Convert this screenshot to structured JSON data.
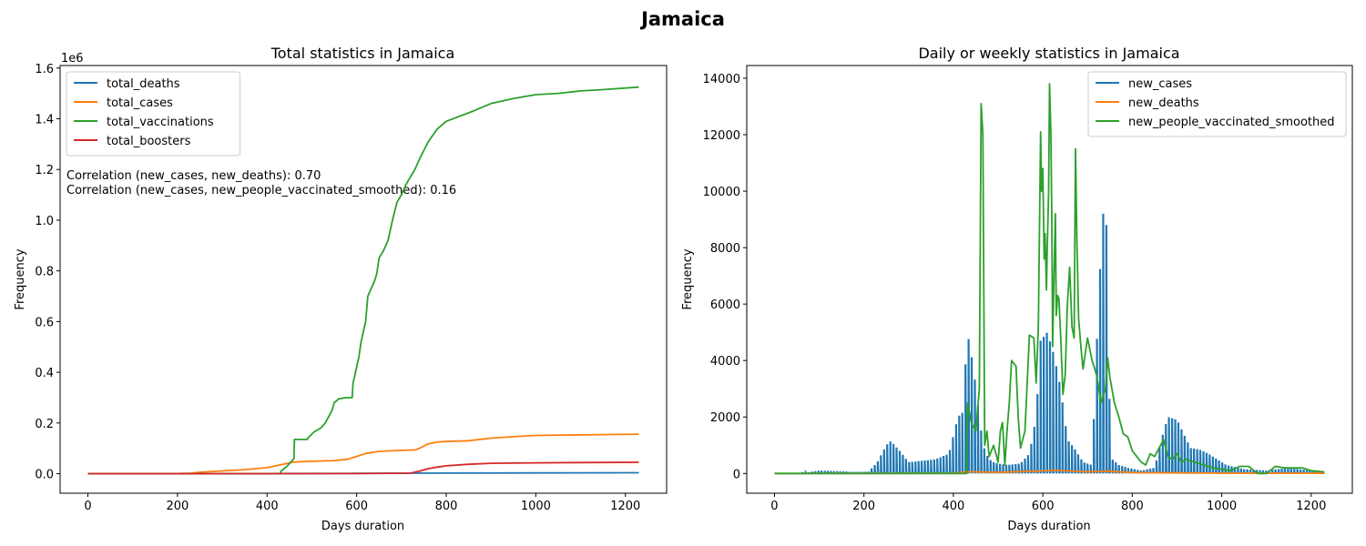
{
  "figure": {
    "suptitle": "Jamaica"
  },
  "chart_data": [
    {
      "type": "line",
      "title": "Total statistics in Jamaica",
      "xlabel": "Days duration",
      "ylabel": "Frequency",
      "offset_text": "1e6",
      "xlim": [
        -62,
        1292
      ],
      "ylim": [
        -0.077,
        1.61
      ],
      "xticks": [
        0,
        200,
        400,
        600,
        800,
        1000,
        1200
      ],
      "yticks": [
        0.0,
        0.2,
        0.4,
        0.6,
        0.8,
        1.0,
        1.2,
        1.4,
        1.6
      ],
      "ytick_labels": [
        "0.0",
        "0.2",
        "0.4",
        "0.6",
        "0.8",
        "1.0",
        "1.2",
        "1.4",
        "1.6"
      ],
      "legend_position": "top-left",
      "annotations": [
        "Correlation (new_cases, new_deaths): 0.70",
        "Correlation (new_cases, new_people_vaccinated_smoothed): 0.16"
      ],
      "series": [
        {
          "name": "total_deaths",
          "color": "#1f77b4",
          "style": "line",
          "x": [
            0,
            100,
            200,
            300,
            400,
            500,
            600,
            700,
            800,
            1000,
            1230
          ],
          "y": [
            0,
            0,
            0.0001,
            0.0002,
            0.0004,
            0.0008,
            0.0012,
            0.0018,
            0.0025,
            0.0032,
            0.0037
          ]
        },
        {
          "name": "total_cases",
          "color": "#ff7f0e",
          "style": "line",
          "x": [
            0,
            200,
            230,
            250,
            300,
            350,
            400,
            430,
            460,
            500,
            550,
            580,
            600,
            620,
            650,
            700,
            730,
            740,
            760,
            780,
            800,
            850,
            900,
            950,
            1000,
            1100,
            1230
          ],
          "y": [
            0,
            0.0005,
            0.002,
            0.006,
            0.011,
            0.016,
            0.024,
            0.035,
            0.046,
            0.049,
            0.052,
            0.057,
            0.068,
            0.08,
            0.088,
            0.092,
            0.094,
            0.1,
            0.118,
            0.125,
            0.127,
            0.13,
            0.14,
            0.146,
            0.151,
            0.153,
            0.156
          ]
        },
        {
          "name": "total_vaccinations",
          "color": "#2ca02c",
          "style": "line",
          "x": [
            0,
            430,
            431,
            445,
            455,
            460,
            461,
            490,
            491,
            505,
            510,
            520,
            530,
            545,
            550,
            560,
            575,
            590,
            592,
            595,
            600,
            605,
            610,
            615,
            620,
            625,
            640,
            645,
            650,
            660,
            670,
            680,
            690,
            700,
            710,
            720,
            730,
            740,
            760,
            780,
            800,
            830,
            860,
            900,
            950,
            1000,
            1050,
            1100,
            1150,
            1230
          ],
          "y": [
            0,
            0,
            0.01,
            0.03,
            0.05,
            0.06,
            0.135,
            0.135,
            0.14,
            0.165,
            0.17,
            0.18,
            0.2,
            0.25,
            0.28,
            0.295,
            0.3,
            0.3,
            0.36,
            0.38,
            0.42,
            0.46,
            0.52,
            0.56,
            0.6,
            0.7,
            0.76,
            0.79,
            0.85,
            0.88,
            0.92,
            1.0,
            1.07,
            1.1,
            1.14,
            1.17,
            1.2,
            1.24,
            1.31,
            1.36,
            1.39,
            1.41,
            1.43,
            1.46,
            1.48,
            1.495,
            1.5,
            1.51,
            1.515,
            1.525
          ]
        },
        {
          "name": "total_boosters",
          "color": "#d62728",
          "style": "line",
          "x": [
            0,
            400,
            600,
            720,
            740,
            760,
            780,
            800,
            850,
            900,
            1000,
            1100,
            1230
          ],
          "y": [
            0,
            0,
            0.0005,
            0.002,
            0.01,
            0.02,
            0.026,
            0.031,
            0.037,
            0.041,
            0.043,
            0.044,
            0.045
          ]
        }
      ]
    },
    {
      "type": "line",
      "title": "Daily or weekly statistics in Jamaica",
      "xlabel": "Days duration",
      "ylabel": "Frequency",
      "xlim": [
        -62,
        1292
      ],
      "ylim": [
        -700,
        14450
      ],
      "xticks": [
        0,
        200,
        400,
        600,
        800,
        1000,
        1200
      ],
      "yticks": [
        0,
        2000,
        4000,
        6000,
        8000,
        10000,
        12000,
        14000
      ],
      "ytick_labels": [
        "0",
        "2000",
        "4000",
        "6000",
        "8000",
        "10000",
        "12000",
        "14000"
      ],
      "legend_position": "top-right",
      "series": [
        {
          "name": "new_cases",
          "color": "#1f77b4",
          "style": "spikes",
          "step": 7,
          "x": [
            0,
            60,
            100,
            140,
            180,
            210,
            230,
            250,
            260,
            280,
            300,
            330,
            360,
            390,
            410,
            420,
            430,
            435,
            450,
            460,
            470,
            480,
            490,
            500,
            520,
            550,
            570,
            585,
            595,
            610,
            625,
            640,
            655,
            670,
            690,
            710,
            725,
            735,
            742,
            748,
            755,
            770,
            790,
            820,
            850,
            870,
            880,
            900,
            930,
            950,
            970,
            990,
            1010,
            1050,
            1100,
            1150,
            1200,
            1230
          ],
          "y": [
            0,
            0,
            100,
            80,
            50,
            60,
            400,
            1000,
            1150,
            800,
            400,
            450,
            500,
            700,
            2000,
            2150,
            4600,
            4800,
            3100,
            1700,
            800,
            500,
            400,
            350,
            300,
            350,
            700,
            2000,
            4700,
            5000,
            4200,
            3000,
            1200,
            900,
            400,
            300,
            6400,
            9200,
            8800,
            3000,
            500,
            300,
            200,
            100,
            200,
            1500,
            2000,
            1900,
            900,
            850,
            700,
            500,
            300,
            150,
            100,
            200,
            100,
            50
          ]
        },
        {
          "name": "new_deaths",
          "color": "#ff7f0e",
          "style": "line",
          "x": [
            0,
            200,
            400,
            430,
            500,
            600,
            620,
            700,
            750,
            800,
            1000,
            1230
          ],
          "y": [
            0,
            2,
            10,
            60,
            40,
            90,
            110,
            60,
            80,
            30,
            10,
            5
          ]
        },
        {
          "name": "new_people_vaccinated_smoothed",
          "color": "#2ca02c",
          "style": "line",
          "x": [
            0,
            430,
            432,
            440,
            450,
            458,
            462,
            466,
            470,
            475,
            480,
            490,
            500,
            505,
            510,
            515,
            520,
            525,
            530,
            540,
            545,
            550,
            560,
            570,
            580,
            585,
            590,
            595,
            597,
            600,
            603,
            605,
            608,
            610,
            613,
            615,
            618,
            620,
            622,
            625,
            628,
            630,
            633,
            636,
            640,
            645,
            650,
            655,
            660,
            665,
            670,
            673,
            676,
            680,
            685,
            690,
            700,
            710,
            720,
            730,
            740,
            745,
            750,
            760,
            770,
            780,
            790,
            800,
            810,
            820,
            830,
            840,
            850,
            860,
            870,
            880,
            890,
            900,
            910,
            920,
            940,
            960,
            980,
            1000,
            1020,
            1040,
            1060,
            1080,
            1100,
            1120,
            1140,
            1160,
            1180,
            1200,
            1230
          ],
          "y": [
            0,
            0,
            2500,
            1800,
            1500,
            3000,
            13100,
            12000,
            1000,
            1500,
            600,
            1000,
            400,
            1500,
            1800,
            300,
            1500,
            2500,
            4000,
            3800,
            2000,
            900,
            1500,
            4900,
            4800,
            3200,
            5200,
            12100,
            10000,
            10800,
            7600,
            8500,
            6500,
            8000,
            10000,
            13800,
            12000,
            9000,
            4500,
            7000,
            9200,
            5600,
            6300,
            6200,
            4800,
            2800,
            3500,
            6000,
            7300,
            5200,
            4800,
            11500,
            8300,
            5500,
            4500,
            3700,
            4800,
            4000,
            3500,
            2500,
            3000,
            4100,
            3400,
            2500,
            2000,
            1400,
            1300,
            800,
            600,
            400,
            300,
            700,
            600,
            900,
            1200,
            600,
            500,
            700,
            400,
            500,
            400,
            300,
            200,
            150,
            100,
            250,
            250,
            0,
            0,
            250,
            200,
            200,
            200,
            100,
            50
          ]
        }
      ]
    }
  ]
}
